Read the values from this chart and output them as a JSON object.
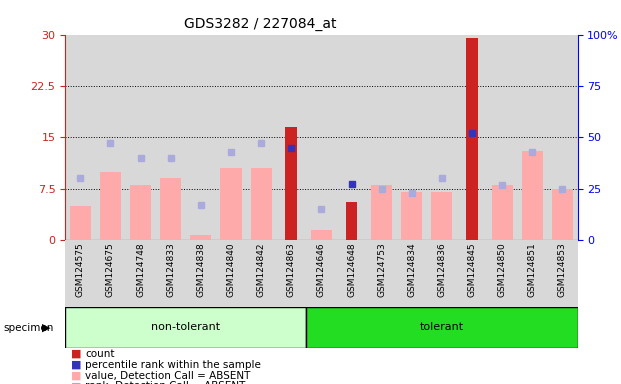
{
  "title": "GDS3282 / 227084_at",
  "samples": [
    "GSM124575",
    "GSM124675",
    "GSM124748",
    "GSM124833",
    "GSM124838",
    "GSM124840",
    "GSM124842",
    "GSM124863",
    "GSM124646",
    "GSM124648",
    "GSM124753",
    "GSM124834",
    "GSM124836",
    "GSM124845",
    "GSM124850",
    "GSM124851",
    "GSM124853"
  ],
  "non_tolerant_count": 8,
  "tolerant_count": 9,
  "count_values": [
    null,
    null,
    null,
    null,
    null,
    null,
    null,
    16.5,
    null,
    5.5,
    null,
    null,
    null,
    29.5,
    null,
    null,
    null
  ],
  "percentile_rank": [
    null,
    null,
    null,
    null,
    null,
    null,
    null,
    45.0,
    null,
    27.5,
    null,
    null,
    null,
    52.0,
    null,
    null,
    null
  ],
  "value_absent": [
    5.0,
    10.0,
    8.0,
    9.0,
    0.8,
    10.5,
    10.5,
    null,
    1.5,
    null,
    8.0,
    7.0,
    7.0,
    null,
    8.0,
    13.0,
    7.5
  ],
  "rank_absent_pct": [
    30.0,
    47.0,
    40.0,
    40.0,
    17.0,
    43.0,
    47.0,
    null,
    15.0,
    null,
    25.0,
    23.0,
    30.0,
    null,
    27.0,
    43.0,
    25.0
  ],
  "ylim_left": [
    0,
    30
  ],
  "ylim_right": [
    0,
    100
  ],
  "yticks_left": [
    0,
    7.5,
    15,
    22.5,
    30
  ],
  "yticks_right": [
    0,
    25,
    50,
    75,
    100
  ],
  "bg_color": "#ffffff",
  "bar_color_red": "#cc2222",
  "bar_color_pink": "#ffaaaa",
  "dot_color_blue": "#3333bb",
  "dot_color_lightblue": "#aaaadd",
  "group_bg_nontol": "#ccffcc",
  "group_bg_tol": "#22dd22",
  "col_bg": "#d8d8d8"
}
